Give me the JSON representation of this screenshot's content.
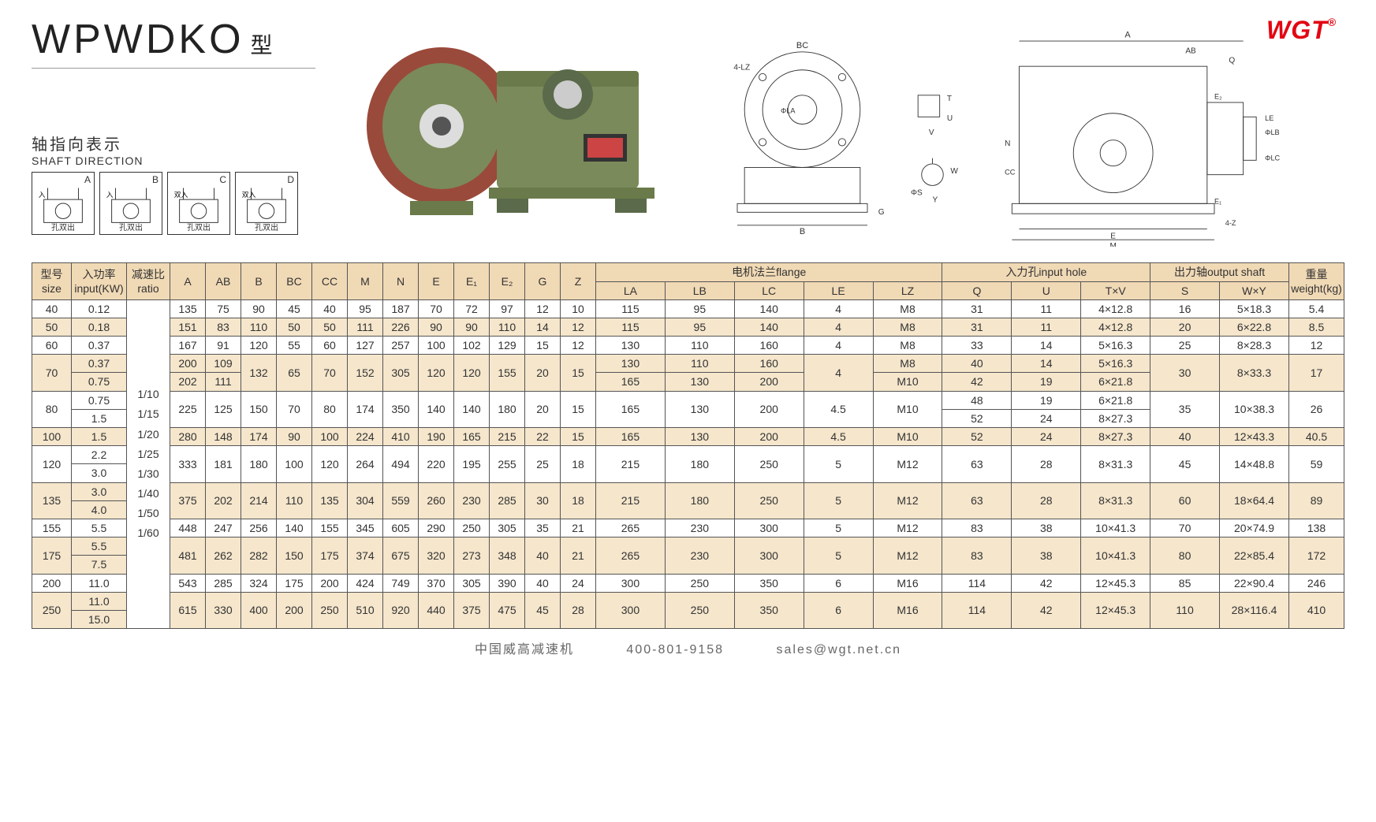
{
  "brand": "WGT",
  "model": "WPWDKO",
  "model_suffix": "型",
  "shaft_direction_cn": "轴指向表示",
  "shaft_direction_en": "SHAFT DIRECTION",
  "shaft_variants": [
    {
      "letter": "A",
      "top": "入",
      "bottom": "孔双出"
    },
    {
      "letter": "B",
      "top": "入",
      "bottom": "孔双出"
    },
    {
      "letter": "C",
      "top": "双入",
      "bottom": "孔双出"
    },
    {
      "letter": "D",
      "top": "双入",
      "bottom": "孔双出"
    }
  ],
  "diagram_labels": [
    "BC",
    "4-LZ",
    "ΦLA",
    "B",
    "G",
    "T",
    "U",
    "V",
    "ΦS",
    "W",
    "Y",
    "A",
    "AB",
    "Q",
    "E₂",
    "CC",
    "N",
    "E₁",
    "E",
    "M",
    "4-Z",
    "ΦLB",
    "ΦLC",
    "LE"
  ],
  "table": {
    "group_headers": {
      "size": "型号\nsize",
      "input": "入功率\ninput(KW)",
      "ratio": "减速比\nratio",
      "flange": "电机法兰flange",
      "input_hole": "入力孔input hole",
      "output_shaft": "出力轴output shaft",
      "weight": "重量\nweight(kg)"
    },
    "cols": [
      "A",
      "AB",
      "B",
      "BC",
      "CC",
      "M",
      "N",
      "E",
      "E₁",
      "E₂",
      "G",
      "Z",
      "LA",
      "LB",
      "LC",
      "LE",
      "LZ",
      "Q",
      "U",
      "T×V",
      "S",
      "W×Y"
    ],
    "ratio_text": "1/10\n1/15\n1/20\n1/25\n1/30\n1/40\n1/50\n1/60",
    "rows": [
      {
        "tan": false,
        "size": "40",
        "input": [
          "0.12"
        ],
        "A": "135",
        "AB": "75",
        "B": "90",
        "BC": "45",
        "CC": "40",
        "M": "95",
        "N": "187",
        "E": "70",
        "E1": "72",
        "E2": "97",
        "G": "12",
        "Z": "10",
        "LA": "115",
        "LB": "95",
        "LC": "140",
        "LE": "4",
        "LZ": "M8",
        "Q": "31",
        "U": "11",
        "TV": "4×12.8",
        "S": "16",
        "WY": "5×18.3",
        "wt": "5.4"
      },
      {
        "tan": true,
        "size": "50",
        "input": [
          "0.18"
        ],
        "A": "151",
        "AB": "83",
        "B": "110",
        "BC": "50",
        "CC": "50",
        "M": "111",
        "N": "226",
        "E": "90",
        "E1": "90",
        "E2": "110",
        "G": "14",
        "Z": "12",
        "LA": "115",
        "LB": "95",
        "LC": "140",
        "LE": "4",
        "LZ": "M8",
        "Q": "31",
        "U": "11",
        "TV": "4×12.8",
        "S": "20",
        "WY": "6×22.8",
        "wt": "8.5"
      },
      {
        "tan": false,
        "size": "60",
        "input": [
          "0.37"
        ],
        "A": "167",
        "AB": "91",
        "B": "120",
        "BC": "55",
        "CC": "60",
        "M": "127",
        "N": "257",
        "E": "100",
        "E1": "102",
        "E2": "129",
        "G": "15",
        "Z": "12",
        "LA": "130",
        "LB": "110",
        "LC": "160",
        "LE": "4",
        "LZ": "M8",
        "Q": "33",
        "U": "14",
        "TV": "5×16.3",
        "S": "25",
        "WY": "8×28.3",
        "wt": "12"
      },
      {
        "tan": true,
        "size": "70",
        "input": [
          "0.37",
          "0.75"
        ],
        "sub": [
          {
            "A": "200",
            "AB": "109",
            "LA": "130",
            "LB": "110",
            "LC": "160",
            "LZ": "M8",
            "Q": "40",
            "U": "14",
            "TV": "5×16.3"
          },
          {
            "A": "202",
            "AB": "111",
            "LA": "165",
            "LB": "130",
            "LC": "200",
            "LZ": "M10",
            "Q": "42",
            "U": "19",
            "TV": "6×21.8"
          }
        ],
        "B": "132",
        "BC": "65",
        "CC": "70",
        "M": "152",
        "N": "305",
        "E": "120",
        "E1": "120",
        "E2": "155",
        "G": "20",
        "Z": "15",
        "LE": "4",
        "S": "30",
        "WY": "8×33.3",
        "wt": "17"
      },
      {
        "tan": false,
        "size": "80",
        "input": [
          "0.75",
          "1.5"
        ],
        "sub": [
          {
            "Q": "48",
            "U": "19",
            "TV": "6×21.8"
          },
          {
            "Q": "52",
            "U": "24",
            "TV": "8×27.3"
          }
        ],
        "A": "225",
        "AB": "125",
        "B": "150",
        "BC": "70",
        "CC": "80",
        "M": "174",
        "N": "350",
        "E": "140",
        "E1": "140",
        "E2": "180",
        "G": "20",
        "Z": "15",
        "LA": "165",
        "LB": "130",
        "LC": "200",
        "LE": "4.5",
        "LZ": "M10",
        "S": "35",
        "WY": "10×38.3",
        "wt": "26"
      },
      {
        "tan": true,
        "size": "100",
        "input": [
          "1.5"
        ],
        "A": "280",
        "AB": "148",
        "B": "174",
        "BC": "90",
        "CC": "100",
        "M": "224",
        "N": "410",
        "E": "190",
        "E1": "165",
        "E2": "215",
        "G": "22",
        "Z": "15",
        "LA": "165",
        "LB": "130",
        "LC": "200",
        "LE": "4.5",
        "LZ": "M10",
        "Q": "52",
        "U": "24",
        "TV": "8×27.3",
        "S": "40",
        "WY": "12×43.3",
        "wt": "40.5"
      },
      {
        "tan": false,
        "size": "120",
        "input": [
          "2.2",
          "3.0"
        ],
        "A": "333",
        "AB": "181",
        "B": "180",
        "BC": "100",
        "CC": "120",
        "M": "264",
        "N": "494",
        "E": "220",
        "E1": "195",
        "E2": "255",
        "G": "25",
        "Z": "18",
        "LA": "215",
        "LB": "180",
        "LC": "250",
        "LE": "5",
        "LZ": "M12",
        "Q": "63",
        "U": "28",
        "TV": "8×31.3",
        "S": "45",
        "WY": "14×48.8",
        "wt": "59"
      },
      {
        "tan": true,
        "size": "135",
        "input": [
          "3.0",
          "4.0"
        ],
        "A": "375",
        "AB": "202",
        "B": "214",
        "BC": "110",
        "CC": "135",
        "M": "304",
        "N": "559",
        "E": "260",
        "E1": "230",
        "E2": "285",
        "G": "30",
        "Z": "18",
        "LA": "215",
        "LB": "180",
        "LC": "250",
        "LE": "5",
        "LZ": "M12",
        "Q": "63",
        "U": "28",
        "TV": "8×31.3",
        "S": "60",
        "WY": "18×64.4",
        "wt": "89"
      },
      {
        "tan": false,
        "size": "155",
        "input": [
          "5.5"
        ],
        "A": "448",
        "AB": "247",
        "B": "256",
        "BC": "140",
        "CC": "155",
        "M": "345",
        "N": "605",
        "E": "290",
        "E1": "250",
        "E2": "305",
        "G": "35",
        "Z": "21",
        "LA": "265",
        "LB": "230",
        "LC": "300",
        "LE": "5",
        "LZ": "M12",
        "Q": "83",
        "U": "38",
        "TV": "10×41.3",
        "S": "70",
        "WY": "20×74.9",
        "wt": "138"
      },
      {
        "tan": true,
        "size": "175",
        "input": [
          "5.5",
          "7.5"
        ],
        "A": "481",
        "AB": "262",
        "B": "282",
        "BC": "150",
        "CC": "175",
        "M": "374",
        "N": "675",
        "E": "320",
        "E1": "273",
        "E2": "348",
        "G": "40",
        "Z": "21",
        "LA": "265",
        "LB": "230",
        "LC": "300",
        "LE": "5",
        "LZ": "M12",
        "Q": "83",
        "U": "38",
        "TV": "10×41.3",
        "S": "80",
        "WY": "22×85.4",
        "wt": "172"
      },
      {
        "tan": false,
        "size": "200",
        "input": [
          "11.0"
        ],
        "A": "543",
        "AB": "285",
        "B": "324",
        "BC": "175",
        "CC": "200",
        "M": "424",
        "N": "749",
        "E": "370",
        "E1": "305",
        "E2": "390",
        "G": "40",
        "Z": "24",
        "LA": "300",
        "LB": "250",
        "LC": "350",
        "LE": "6",
        "LZ": "M16",
        "Q": "114",
        "U": "42",
        "TV": "12×45.3",
        "S": "85",
        "WY": "22×90.4",
        "wt": "246"
      },
      {
        "tan": true,
        "size": "250",
        "input": [
          "11.0",
          "15.0"
        ],
        "A": "615",
        "AB": "330",
        "B": "400",
        "BC": "200",
        "CC": "250",
        "M": "510",
        "N": "920",
        "E": "440",
        "E1": "375",
        "E2": "475",
        "G": "45",
        "Z": "28",
        "LA": "300",
        "LB": "250",
        "LC": "350",
        "LE": "6",
        "LZ": "M16",
        "Q": "114",
        "U": "42",
        "TV": "12×45.3",
        "S": "110",
        "WY": "28×116.4",
        "wt": "410"
      }
    ]
  },
  "footer": {
    "company": "中国威高减速机",
    "phone": "400-801-9158",
    "email": "sales@wgt.net.cn"
  },
  "colors": {
    "header_bg": "#f0d9b5",
    "tan_bg": "#f5e6cc",
    "border": "#555555",
    "logo": "#e30613"
  }
}
